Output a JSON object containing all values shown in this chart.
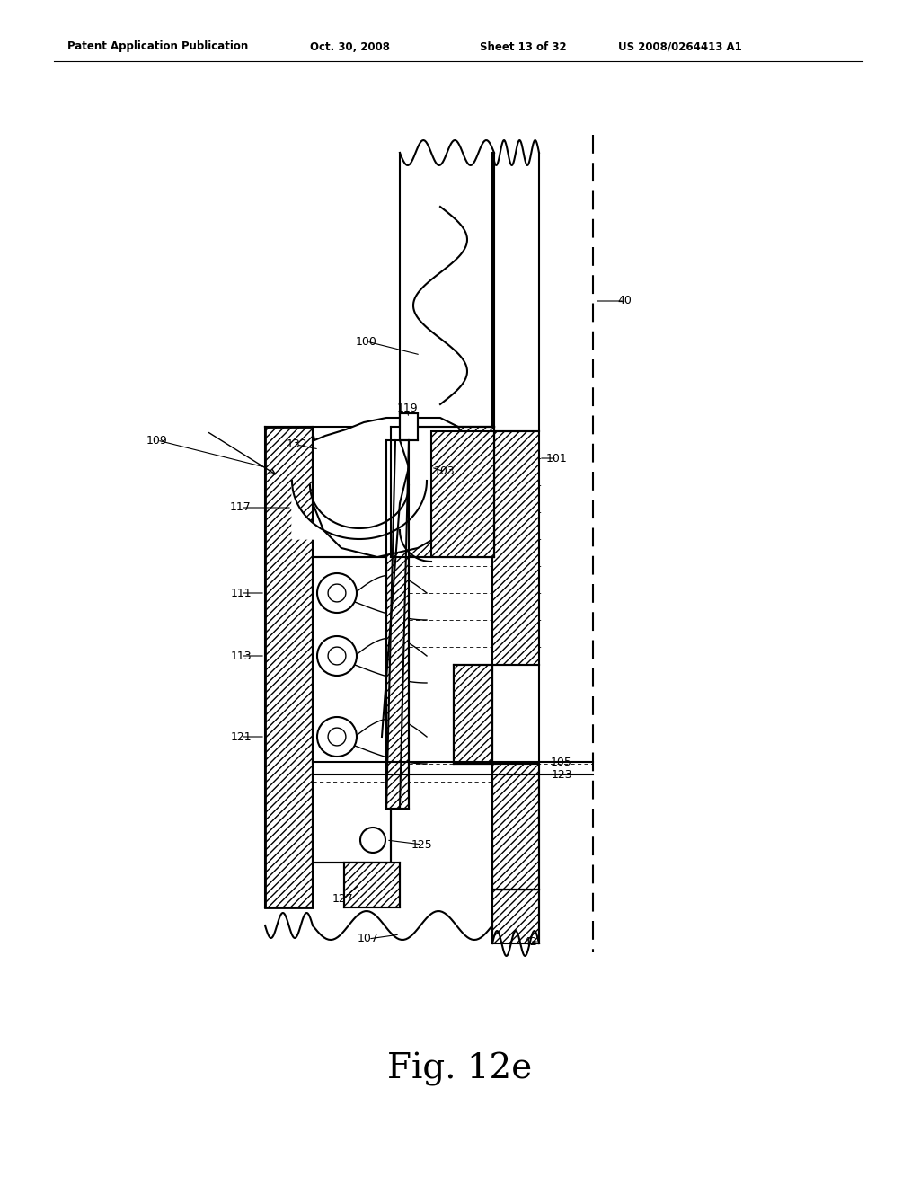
{
  "header_left": "Patent Application Publication",
  "header_date": "Oct. 30, 2008",
  "header_sheet": "Sheet 13 of 32",
  "header_patent": "US 2008/0264413 A1",
  "fig_label": "Fig. 12e",
  "bg_color": "#ffffff",
  "black": "#000000"
}
